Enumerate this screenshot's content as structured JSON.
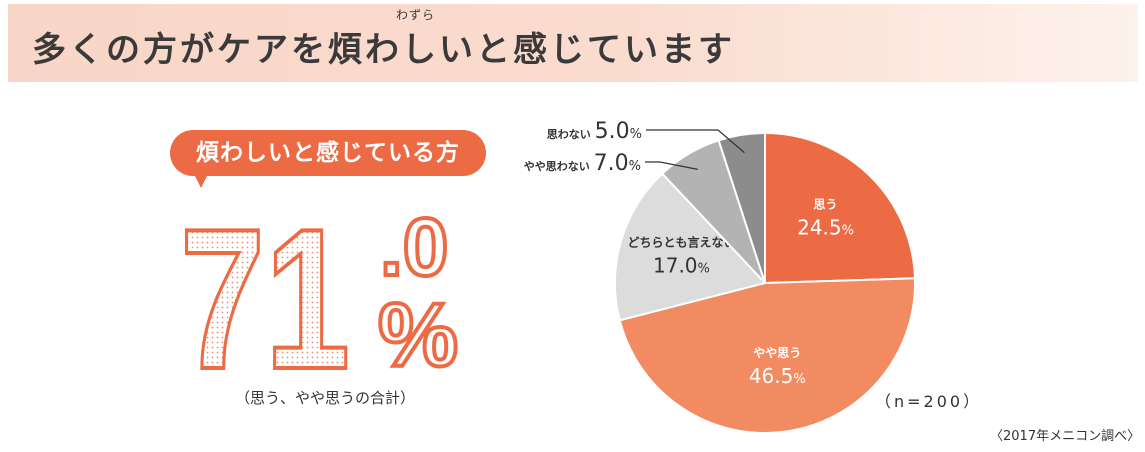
{
  "header": {
    "title": "多くの方がケアを煩わしいと感じています",
    "ruby": "わずら"
  },
  "highlight": {
    "bubble_label": "煩わしいと感じている方",
    "integer": "71",
    "decimal": ".0",
    "unit": "%",
    "sub_label": "（思う、やや思うの合計）",
    "accent_color": "#ec6a44"
  },
  "chart_data": {
    "type": "pie",
    "slices": [
      {
        "label": "思う",
        "value": 24.5,
        "display": "24.5",
        "unit": "%",
        "color": "#ec6a44",
        "label_pos": "inside"
      },
      {
        "label": "やや思う",
        "value": 46.5,
        "display": "46.5",
        "unit": "%",
        "color": "#f28a62",
        "label_pos": "inside"
      },
      {
        "label": "どちらとも言えない",
        "value": 17.0,
        "display": "17.0",
        "unit": "%",
        "color": "#dcdcdc",
        "label_pos": "inside"
      },
      {
        "label": "やや思わない",
        "value": 7.0,
        "display": "7.0",
        "unit": "%",
        "color": "#b3b3b3",
        "label_pos": "outside"
      },
      {
        "label": "思わない",
        "value": 5.0,
        "display": "5.0",
        "unit": "%",
        "color": "#8c8c8c",
        "label_pos": "outside"
      }
    ],
    "start_angle": "12 o'clock",
    "direction": "clockwise",
    "sample_size": "（n=200）",
    "source": "〈2017年メニコン調べ〉"
  }
}
